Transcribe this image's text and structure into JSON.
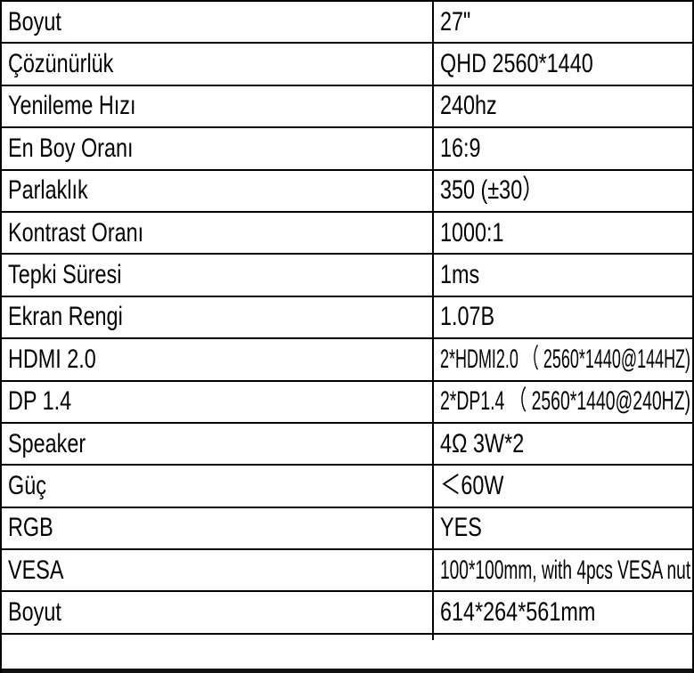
{
  "title": "Monitor Specification Table",
  "colors": {
    "background": "#ffffff",
    "border": "#000000",
    "text": "#000000",
    "bottom_strip": "#111111"
  },
  "table": {
    "rows": [
      {
        "label": "Boyut",
        "value": "27\""
      },
      {
        "label": "Çözünürlük",
        "value": "QHD 2560*1440"
      },
      {
        "label": "Yenileme Hızı",
        "value": "240hz"
      },
      {
        "label": "En Boy Oranı",
        "value": "16:9"
      },
      {
        "label": "Parlaklık",
        "value": "350 (±30）"
      },
      {
        "label": "Kontrast Oranı",
        "value": "1000:1"
      },
      {
        "label": "Tepki Süresi",
        "value": "1ms"
      },
      {
        "label": "Ekran Rengi",
        "value": "1.07B"
      },
      {
        "label": "HDMI 2.0",
        "value": "2*HDMI2.0 （ 2560*1440@144HZ)"
      },
      {
        "label": "DP 1.4",
        "value": "2*DP1.4 （ 2560*1440@240HZ)"
      },
      {
        "label": "Speaker",
        "value": "4Ω 3W*2"
      },
      {
        "label": "Güç",
        "value": "＜60W"
      },
      {
        "label": "RGB",
        "value": "YES"
      },
      {
        "label": "VESA",
        "value": "100*100mm, with 4pcs VESA nut"
      },
      {
        "label": "Boyut",
        "value": "614*264*561mm"
      }
    ]
  }
}
